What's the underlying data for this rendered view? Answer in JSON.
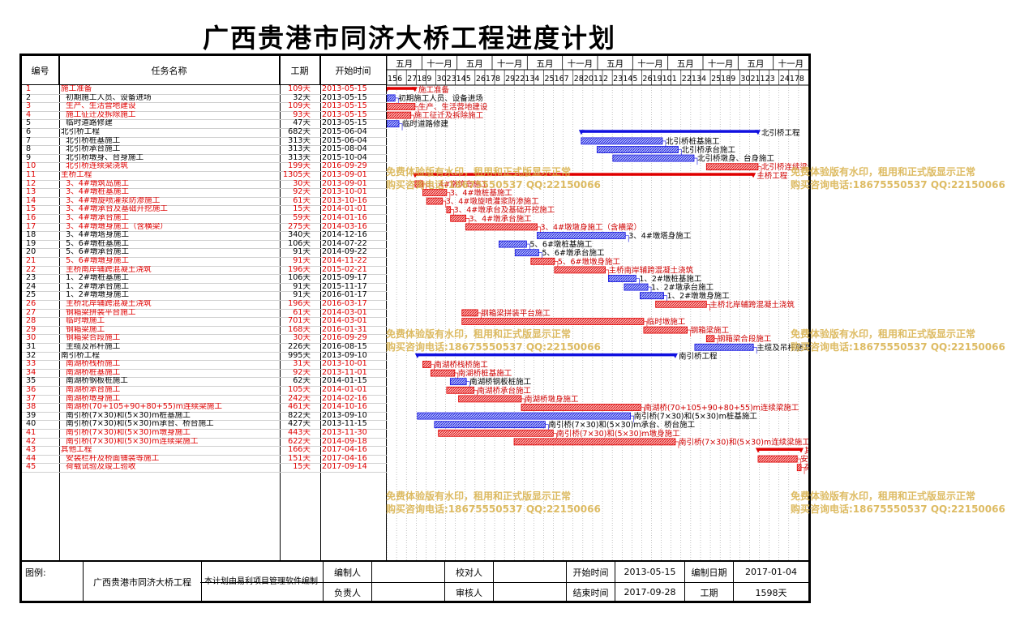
{
  "title": "广西贵港市同济大桥工程进度计划",
  "header": {
    "id": "编号",
    "name": "任务名称",
    "dur": "工期",
    "start": "开始时间"
  },
  "timescale": {
    "top": [
      "五月",
      "十一月",
      "五月",
      "十一月",
      "五月",
      "十一月",
      "五月",
      "十一月",
      "五月",
      "十一月",
      "五月",
      "十一月"
    ],
    "bottom": [
      "15",
      "6",
      "27",
      "18",
      "9",
      "30",
      "23",
      "14",
      "5",
      "26",
      "17",
      "8",
      "29",
      "22",
      "13",
      "4",
      "25",
      "16",
      "7",
      "28",
      "20",
      "11",
      "2",
      "23",
      "14",
      "5",
      "26",
      "19",
      "10",
      "1",
      "22",
      "13",
      "4",
      "25",
      "18",
      "9",
      "30",
      "21",
      "12",
      "3",
      "24",
      "17",
      "8"
    ]
  },
  "tasks": [
    {
      "id": "1",
      "name": "施工准备",
      "dur": "109天",
      "start": "2013-05-15",
      "red": true,
      "summary": true
    },
    {
      "id": "2",
      "name": "  初期施工人员、设备进场",
      "dur": "32天",
      "start": "2013-05-15",
      "red": false
    },
    {
      "id": "3",
      "name": "  生产、生活营地建设",
      "dur": "109天",
      "start": "2013-05-15",
      "red": true
    },
    {
      "id": "4",
      "name": "  施工征迁及拆除施工",
      "dur": "93天",
      "start": "2013-05-15",
      "red": true
    },
    {
      "id": "5",
      "name": "  临时道路修建",
      "dur": "47天",
      "start": "2013-05-15",
      "red": false
    },
    {
      "id": "6",
      "name": "北引桥工程",
      "dur": "682天",
      "start": "2015-06-04",
      "red": false,
      "summary": true
    },
    {
      "id": "7",
      "name": "  北引桥桩基施工",
      "dur": "313天",
      "start": "2015-06-04",
      "red": false
    },
    {
      "id": "8",
      "name": "  北引桥承台施工",
      "dur": "313天",
      "start": "2015-08-04",
      "red": false
    },
    {
      "id": "9",
      "name": "  北引桥墩身、台身施工",
      "dur": "313天",
      "start": "2015-10-04",
      "red": false
    },
    {
      "id": "10",
      "name": "  北引桥连续梁浇筑",
      "dur": "199天",
      "start": "2016-09-29",
      "red": true
    },
    {
      "id": "11",
      "name": "主桥工程",
      "dur": "1305天",
      "start": "2013-09-01",
      "red": true,
      "summary": true
    },
    {
      "id": "12",
      "name": "  3、4#墩筑岛施工",
      "dur": "30天",
      "start": "2013-09-01",
      "red": true
    },
    {
      "id": "13",
      "name": "  3、4#墩桩基施工",
      "dur": "92天",
      "start": "2013-10-01",
      "red": true
    },
    {
      "id": "14",
      "name": "  3、4#墩旋喷灌浆防渗施工",
      "dur": "61天",
      "start": "2013-10-16",
      "red": true
    },
    {
      "id": "15",
      "name": "  3、4#墩承台及基础开挖施工",
      "dur": "15天",
      "start": "2014-01-01",
      "red": true
    },
    {
      "id": "16",
      "name": "  3、4#墩承台施工",
      "dur": "59天",
      "start": "2014-01-16",
      "red": true
    },
    {
      "id": "17",
      "name": "  3、4#墩墩身施工（含横梁）",
      "dur": "275天",
      "start": "2014-03-16",
      "red": true
    },
    {
      "id": "18",
      "name": "  3、4#墩塔身施工",
      "dur": "340天",
      "start": "2014-12-16",
      "red": false
    },
    {
      "id": "19",
      "name": "  5、6#墩桩基施工",
      "dur": "106天",
      "start": "2014-07-22",
      "red": false
    },
    {
      "id": "20",
      "name": "  5、6#墩承台施工",
      "dur": "91天",
      "start": "2014-09-22",
      "red": false
    },
    {
      "id": "21",
      "name": "  5、6#墩墩身施工",
      "dur": "91天",
      "start": "2014-11-22",
      "red": true
    },
    {
      "id": "22",
      "name": "  主桥南岸辅跨混凝土浇筑",
      "dur": "196天",
      "start": "2015-02-21",
      "red": true
    },
    {
      "id": "23",
      "name": "  1、2#墩桩基施工",
      "dur": "106天",
      "start": "2015-09-17",
      "red": false
    },
    {
      "id": "24",
      "name": "  1、2#墩承台施工",
      "dur": "91天",
      "start": "2015-11-17",
      "red": false
    },
    {
      "id": "25",
      "name": "  1、2#墩墩身施工",
      "dur": "91天",
      "start": "2016-01-17",
      "red": false
    },
    {
      "id": "26",
      "name": "  主桥北岸辅跨混凝土浇筑",
      "dur": "196天",
      "start": "2016-03-17",
      "red": true
    },
    {
      "id": "27",
      "name": "  钢箱梁拼装平台施工",
      "dur": "61天",
      "start": "2014-03-01",
      "red": true
    },
    {
      "id": "28",
      "name": "  临时墩施工",
      "dur": "701天",
      "start": "2014-03-01",
      "red": true
    },
    {
      "id": "29",
      "name": "  钢箱梁施工",
      "dur": "168天",
      "start": "2016-01-31",
      "red": true
    },
    {
      "id": "30",
      "name": "  钢箱梁合段施工",
      "dur": "30天",
      "start": "2016-09-29",
      "red": true
    },
    {
      "id": "31",
      "name": "  主缆及吊杆施工",
      "dur": "226天",
      "start": "2016-08-15",
      "red": false
    },
    {
      "id": "32",
      "name": "南引桥工程",
      "dur": "995天",
      "start": "2013-09-10",
      "red": false,
      "summary": true
    },
    {
      "id": "33",
      "name": "  南湖桥栈桥施工",
      "dur": "31天",
      "start": "2013-10-01",
      "red": true
    },
    {
      "id": "34",
      "name": "  南湖桥桩基施工",
      "dur": "92天",
      "start": "2013-11-01",
      "red": true
    },
    {
      "id": "35",
      "name": "  南湖桥钢板桩施工",
      "dur": "62天",
      "start": "2014-01-15",
      "red": false
    },
    {
      "id": "36",
      "name": "  南湖桥承台施工",
      "dur": "105天",
      "start": "2014-01-01",
      "red": true
    },
    {
      "id": "37",
      "name": "  南湖桥墩身施工",
      "dur": "242天",
      "start": "2014-02-16",
      "red": true
    },
    {
      "id": "38",
      "name": "  南湖桥(70+105+90+80+55)m连续梁施工",
      "dur": "461天",
      "start": "2014-10-16",
      "red": true
    },
    {
      "id": "39",
      "name": "  南引桥(7×30)和(5×30)m桩基施工",
      "dur": "822天",
      "start": "2013-09-10",
      "red": false
    },
    {
      "id": "40",
      "name": "  南引桥(7×30)和(5×30)m承台、桥台施工",
      "dur": "427天",
      "start": "2013-11-15",
      "red": false
    },
    {
      "id": "41",
      "name": "  南引桥(7×30)和(5×30)m墩身施工",
      "dur": "443天",
      "start": "2013-11-30",
      "red": true
    },
    {
      "id": "42",
      "name": "  南引桥(7×30)和(5×30)m连续梁施工",
      "dur": "622天",
      "start": "2014-09-18",
      "red": true
    },
    {
      "id": "43",
      "name": "其他工程",
      "dur": "166天",
      "start": "2017-04-16",
      "red": true,
      "summary": true
    },
    {
      "id": "44",
      "name": "  安装栏杆及桥面铺装等施工",
      "dur": "151天",
      "start": "2017-04-16",
      "red": true
    },
    {
      "id": "45",
      "name": "  荷载试验及竣工验收",
      "dur": "15天",
      "start": "2017-09-14",
      "red": true
    }
  ],
  "bar_labels": [
    "施工准备",
    "初期施工人员、设备进场",
    "生产、生活营地建设",
    "施工征迁及拆除施工",
    "临时道路修建",
    "北引桥工程",
    "北引桥桩基施工",
    "北引桥承台施工",
    "北引桥墩身、台身施工",
    "北引桥连续梁浇筑",
    "主桥工程",
    "3、4#墩筑岛施工",
    "3、4#墩桩基施工",
    "3、4#墩旋喷灌浆防渗施工",
    "3、4#墩承台及基础开挖施工",
    "3、4#墩承台施工",
    "3、4#墩墩身施工（含横梁）",
    "3、4#墩塔身施工",
    "5、6#墩桩基施工",
    "5、6#墩承台施工",
    "5、6#墩墩身施工",
    "主桥南岸辅跨混凝土浇筑",
    "1、2#墩桩基施工",
    "1、2#墩承台施工",
    "1、2#墩墩身施工",
    "主桥北岸辅跨混凝土浇筑",
    "钢箱梁拼装平台施工",
    "临时墩施工",
    "钢箱梁施工",
    "钢箱梁合段施工",
    "主缆及吊杆施工",
    "南引桥工程",
    "南湖桥栈桥施工",
    "南湖桥桩基施工",
    "南湖桥钢板桩施工",
    "南湖桥承台施工",
    "南湖桥墩身施工",
    "南湖桥(70+105+90+80+55)m连续梁施工",
    "南引桥(7×30)和(5×30)m桩基施工",
    "南引桥(7×30)和(5×30)m承台、桥台施工",
    "南引桥(7×30)和(5×30)m墩身施工",
    "南引桥(7×30)和(5×30)m连续梁施工",
    "其他工程",
    "安装栏杆及桥面铺装等施工",
    "荷载试验及竣工验收"
  ],
  "footer": {
    "legend": "图例:",
    "project": "广西贵港市同济大桥工程",
    "software": "本计划由易利项目管理软件编制",
    "editor": "编制人",
    "checker": "校对人",
    "responsible": "负责人",
    "reviewer": "审核人",
    "start_label": "开始时间",
    "start_value": "2013-05-15",
    "date_label": "编制日期",
    "date_value": "2017-01-04",
    "end_label": "结束时间",
    "end_value": "2017-09-28",
    "dur_label": "工期",
    "dur_value": "1598天"
  },
  "watermark": {
    "line1": "免费体验版有水印，租用和正式版显示正常",
    "line2": "购买咨询电话:18675550537 QQ:22150066"
  },
  "colors": {
    "critical": "#e00000",
    "normal": "#1010e0",
    "summary_normal": "#1010e0",
    "summary_critical": "#e00000",
    "watermark": "#d8b048"
  }
}
